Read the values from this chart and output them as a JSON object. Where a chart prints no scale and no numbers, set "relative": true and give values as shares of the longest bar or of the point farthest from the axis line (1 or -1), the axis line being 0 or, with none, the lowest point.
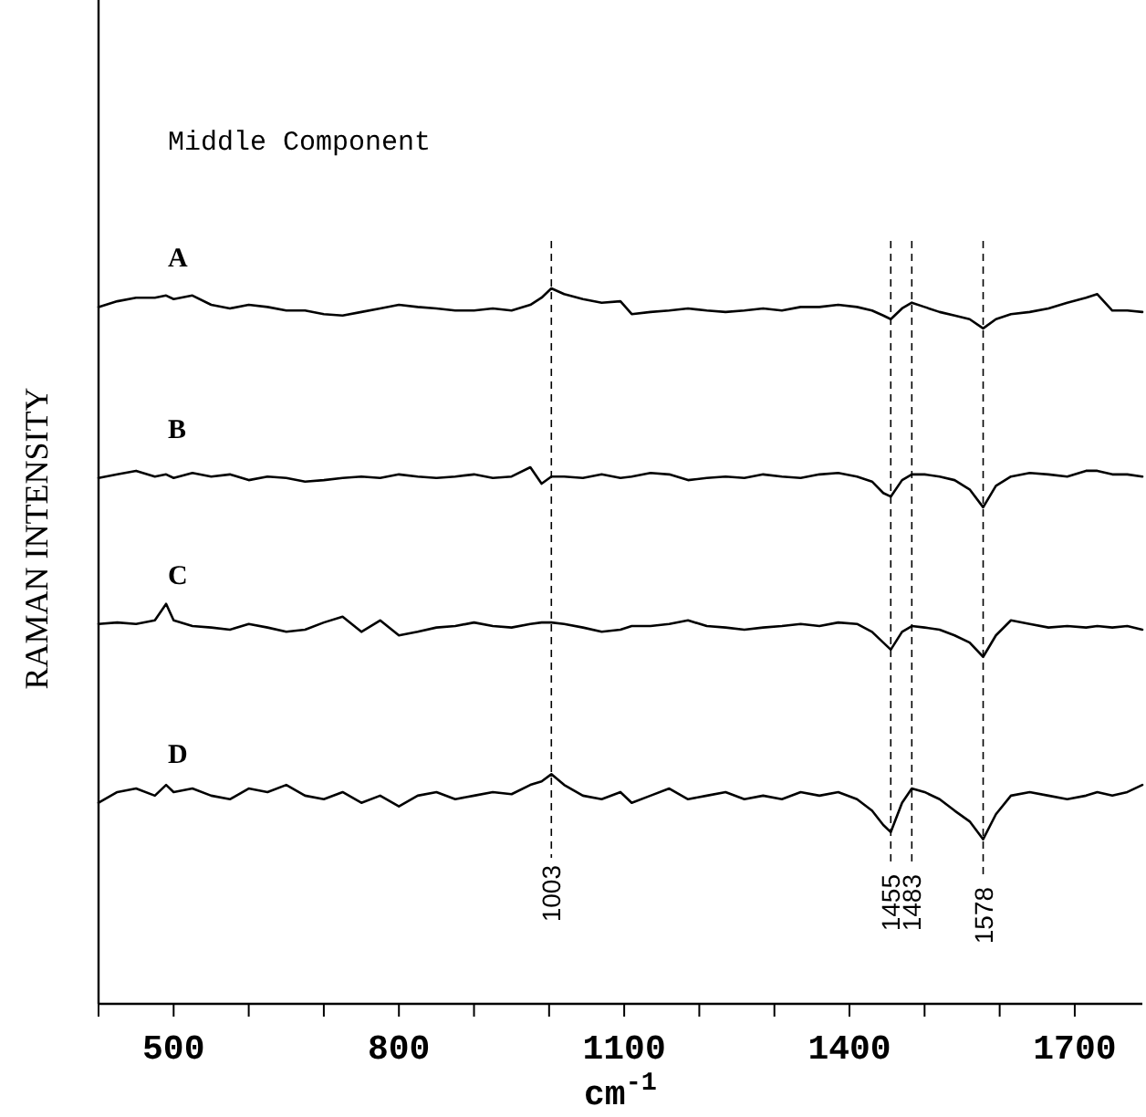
{
  "chart_data": {
    "type": "line",
    "relative": true,
    "title": "Middle Component",
    "xlabel": "cm$^{-1}$",
    "ylabel": "RAMAN INTENSITY",
    "grid": false,
    "marker": "none",
    "line_style": "solid",
    "xlim": [
      400,
      1790
    ],
    "xticks": [
      {
        "value": 400,
        "label": null
      },
      500,
      {
        "value": 600,
        "label": null
      },
      {
        "value": 700,
        "label": null
      },
      800,
      {
        "value": 900,
        "label": null
      },
      {
        "value": 1000,
        "label": null
      },
      1100,
      {
        "value": 1200,
        "label": null
      },
      {
        "value": 1300,
        "label": null
      },
      1400,
      {
        "value": 1500,
        "label": null
      },
      {
        "value": 1600,
        "label": null
      },
      1700
    ],
    "x": [
      400,
      425,
      450,
      475,
      490,
      500,
      525,
      550,
      575,
      600,
      625,
      650,
      675,
      700,
      725,
      750,
      775,
      800,
      825,
      850,
      875,
      900,
      925,
      950,
      975,
      990,
      1003,
      1020,
      1045,
      1070,
      1095,
      1110,
      1135,
      1160,
      1185,
      1210,
      1235,
      1260,
      1285,
      1310,
      1335,
      1360,
      1385,
      1410,
      1430,
      1445,
      1455,
      1470,
      1483,
      1500,
      1520,
      1540,
      1560,
      1578,
      1595,
      1615,
      1640,
      1665,
      1690,
      1715,
      1730,
      1750,
      1770,
      1790
    ],
    "series": [
      {
        "name": "A",
        "color": "#000000",
        "values": [
          0.974,
          0.982,
          0.987,
          0.987,
          0.99,
          0.985,
          0.99,
          0.977,
          0.972,
          0.977,
          0.974,
          0.969,
          0.969,
          0.964,
          0.962,
          0.967,
          0.972,
          0.977,
          0.974,
          0.972,
          0.969,
          0.969,
          0.972,
          0.969,
          0.977,
          0.987,
          1.0,
          0.992,
          0.985,
          0.98,
          0.982,
          0.964,
          0.967,
          0.969,
          0.972,
          0.969,
          0.967,
          0.969,
          0.972,
          0.969,
          0.974,
          0.974,
          0.977,
          0.974,
          0.969,
          0.962,
          0.957,
          0.972,
          0.98,
          0.974,
          0.967,
          0.962,
          0.957,
          0.944,
          0.957,
          0.964,
          0.967,
          0.972,
          0.98,
          0.987,
          0.992,
          0.969,
          0.969,
          0.967
        ]
      },
      {
        "name": "B",
        "color": "#000000",
        "values": [
          0.735,
          0.74,
          0.745,
          0.737,
          0.74,
          0.735,
          0.742,
          0.737,
          0.74,
          0.732,
          0.737,
          0.735,
          0.73,
          0.732,
          0.735,
          0.737,
          0.735,
          0.74,
          0.737,
          0.735,
          0.737,
          0.74,
          0.735,
          0.737,
          0.75,
          0.727,
          0.737,
          0.737,
          0.735,
          0.74,
          0.735,
          0.737,
          0.742,
          0.74,
          0.732,
          0.735,
          0.737,
          0.735,
          0.74,
          0.737,
          0.735,
          0.74,
          0.742,
          0.737,
          0.73,
          0.714,
          0.709,
          0.732,
          0.74,
          0.74,
          0.737,
          0.732,
          0.719,
          0.694,
          0.724,
          0.737,
          0.742,
          0.74,
          0.737,
          0.745,
          0.745,
          0.74,
          0.74,
          0.737
        ]
      },
      {
        "name": "C",
        "color": "#000000",
        "values": [
          0.531,
          0.533,
          0.531,
          0.536,
          0.559,
          0.536,
          0.528,
          0.526,
          0.523,
          0.531,
          0.526,
          0.52,
          0.523,
          0.533,
          0.541,
          0.52,
          0.536,
          0.515,
          0.52,
          0.526,
          0.528,
          0.533,
          0.528,
          0.526,
          0.531,
          0.533,
          0.533,
          0.531,
          0.526,
          0.52,
          0.523,
          0.528,
          0.528,
          0.531,
          0.536,
          0.528,
          0.526,
          0.523,
          0.526,
          0.528,
          0.531,
          0.528,
          0.533,
          0.531,
          0.52,
          0.505,
          0.495,
          0.52,
          0.528,
          0.526,
          0.523,
          0.515,
          0.505,
          0.485,
          0.515,
          0.536,
          0.531,
          0.526,
          0.528,
          0.526,
          0.528,
          0.526,
          0.528,
          0.523
        ]
      },
      {
        "name": "D",
        "color": "#000000",
        "values": [
          0.281,
          0.296,
          0.301,
          0.291,
          0.306,
          0.296,
          0.301,
          0.291,
          0.286,
          0.301,
          0.296,
          0.306,
          0.291,
          0.286,
          0.296,
          0.281,
          0.291,
          0.276,
          0.291,
          0.296,
          0.286,
          0.291,
          0.296,
          0.293,
          0.306,
          0.311,
          0.321,
          0.306,
          0.291,
          0.286,
          0.296,
          0.281,
          0.291,
          0.301,
          0.286,
          0.291,
          0.296,
          0.286,
          0.291,
          0.286,
          0.296,
          0.291,
          0.296,
          0.286,
          0.27,
          0.25,
          0.24,
          0.281,
          0.301,
          0.296,
          0.286,
          0.27,
          0.255,
          0.23,
          0.265,
          0.291,
          0.296,
          0.291,
          0.286,
          0.291,
          0.296,
          0.291,
          0.296,
          0.306
        ]
      }
    ],
    "ref_lines": [
      {
        "axis": "x",
        "value": 1003,
        "label": "1003",
        "line_style": "dashed",
        "color": "#000000"
      },
      {
        "axis": "x",
        "value": 1455,
        "label": "1455",
        "line_style": "dashed",
        "color": "#000000"
      },
      {
        "axis": "x",
        "value": 1483,
        "label": "1483",
        "line_style": "dashed",
        "color": "#000000"
      },
      {
        "axis": "x",
        "value": 1578,
        "label": "1578",
        "line_style": "dashed",
        "color": "#000000"
      }
    ]
  }
}
